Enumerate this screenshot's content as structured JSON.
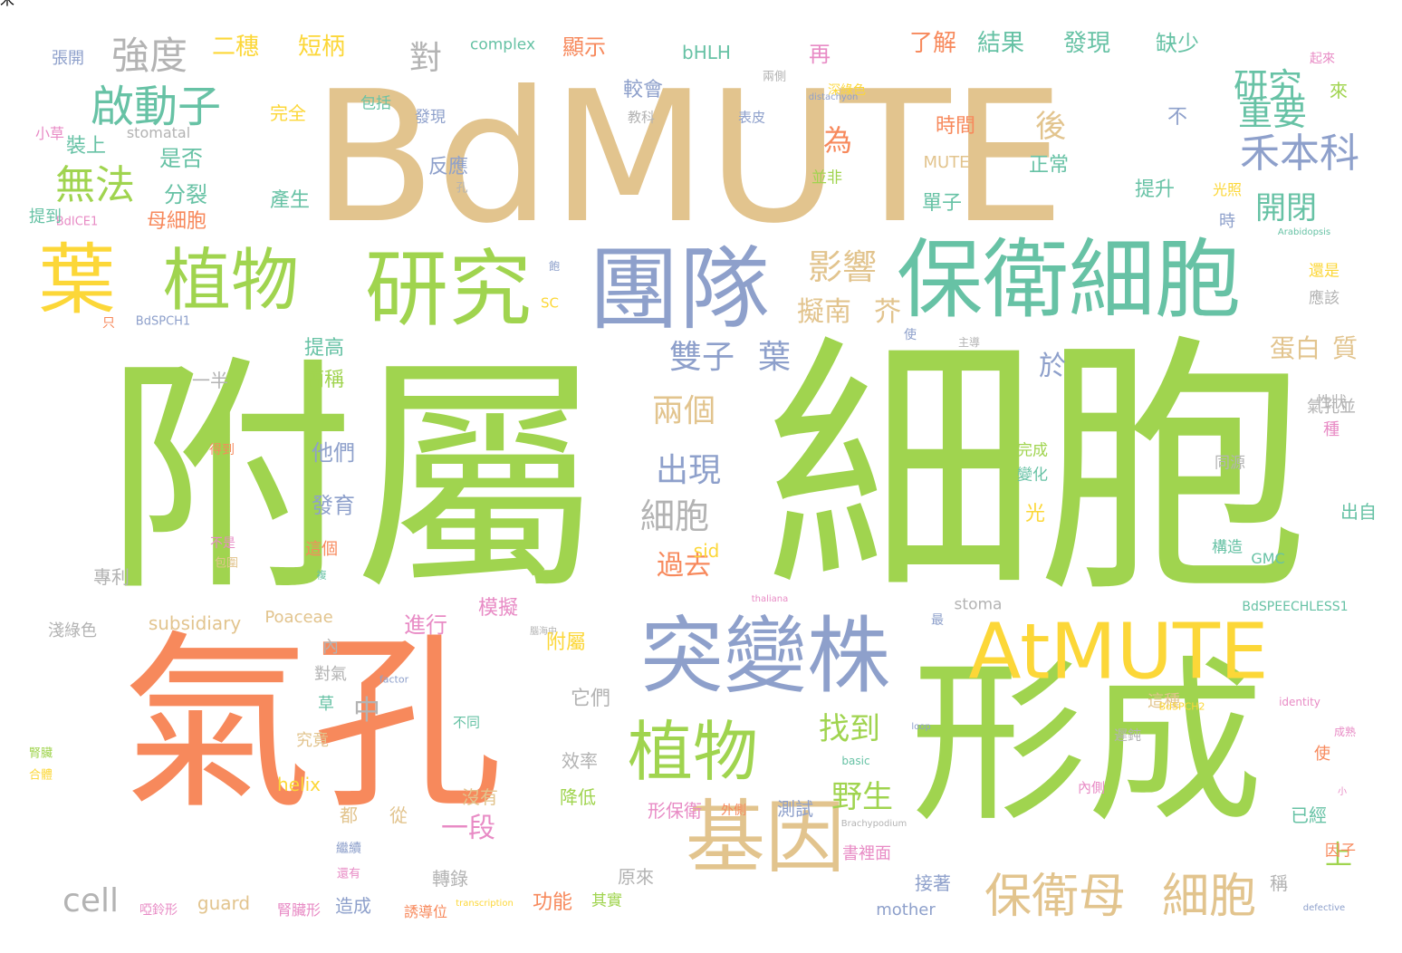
{
  "palette": {
    "green": "#a0d44f",
    "orange": "#f7895c",
    "tan": "#e2c48e",
    "blue": "#8ea0cb",
    "teal": "#67c2a5",
    "yellow": "#fcd738",
    "gray": "#b3b3b3",
    "pink": "#e88bc5"
  },
  "words": [
    {
      "text": "細胞",
      "color": "green"
    },
    {
      "text": "附屬",
      "color": "green"
    },
    {
      "text": "BdMUTE",
      "color": "tan"
    },
    {
      "text": "氣孔",
      "color": "orange"
    },
    {
      "text": "形成",
      "color": "green"
    },
    {
      "text": "保衛細胞",
      "color": "teal"
    },
    {
      "text": "團隊",
      "color": "blue"
    },
    {
      "text": "研究",
      "color": "green"
    },
    {
      "text": "葉",
      "color": "yellow"
    },
    {
      "text": "植物",
      "color": "green"
    },
    {
      "text": "突變株",
      "color": "blue"
    },
    {
      "text": "AtMUTE",
      "color": "yellow"
    },
    {
      "text": "基因",
      "color": "tan"
    },
    {
      "text": "植物",
      "color": "green"
    },
    {
      "text": "保衛母",
      "color": "tan"
    },
    {
      "text": "細胞",
      "color": "tan"
    },
    {
      "text": "啟動子",
      "color": "teal"
    },
    {
      "text": "強度",
      "color": "gray"
    },
    {
      "text": "無法",
      "color": "green"
    },
    {
      "text": "禾本科",
      "color": "blue"
    },
    {
      "text": "研究",
      "color": "teal"
    },
    {
      "text": "重要",
      "color": "teal"
    },
    {
      "text": "影響",
      "color": "tan"
    },
    {
      "text": "雙子",
      "color": "blue"
    },
    {
      "text": "葉",
      "color": "blue"
    },
    {
      "text": "細胞",
      "color": "gray"
    },
    {
      "text": "出現",
      "color": "blue"
    },
    {
      "text": "兩個",
      "color": "tan"
    },
    {
      "text": "找到",
      "color": "green"
    },
    {
      "text": "野生",
      "color": "green"
    },
    {
      "text": "cell",
      "color": "gray"
    },
    {
      "text": "對",
      "color": "gray"
    },
    {
      "text": "開閉",
      "color": "teal"
    },
    {
      "text": "蛋白",
      "color": "tan"
    },
    {
      "text": "質",
      "color": "tan"
    },
    {
      "text": "擬南",
      "color": "tan"
    },
    {
      "text": "芥",
      "color": "tan"
    },
    {
      "text": "過去",
      "color": "orange"
    },
    {
      "text": "上",
      "color": "green"
    },
    {
      "text": "中",
      "color": "gray"
    },
    {
      "text": "後",
      "color": "tan"
    },
    {
      "text": "為",
      "color": "orange"
    },
    {
      "text": "於",
      "color": "blue"
    },
    {
      "text": "一段",
      "color": "pink"
    },
    {
      "text": "二穗",
      "color": "yellow"
    },
    {
      "text": "短柄",
      "color": "yellow"
    },
    {
      "text": "顯示",
      "color": "orange"
    },
    {
      "text": "結果",
      "color": "teal"
    },
    {
      "text": "發現",
      "color": "teal"
    },
    {
      "text": "缺少",
      "color": "teal"
    },
    {
      "text": "了解",
      "color": "orange"
    },
    {
      "text": "再",
      "color": "pink"
    },
    {
      "text": "是否",
      "color": "teal"
    },
    {
      "text": "分裂",
      "color": "teal"
    },
    {
      "text": "裝上",
      "color": "teal"
    },
    {
      "text": "母細胞",
      "color": "orange"
    },
    {
      "text": "產生",
      "color": "teal"
    },
    {
      "text": "反應",
      "color": "blue"
    },
    {
      "text": "提升",
      "color": "teal"
    },
    {
      "text": "時間",
      "color": "orange"
    },
    {
      "text": "正常",
      "color": "teal"
    },
    {
      "text": "單子",
      "color": "teal"
    },
    {
      "text": "發育",
      "color": "blue"
    },
    {
      "text": "他們",
      "color": "blue"
    },
    {
      "text": "簡稱",
      "color": "green"
    },
    {
      "text": "提高",
      "color": "teal"
    },
    {
      "text": "一半",
      "color": "gray"
    },
    {
      "text": "進行",
      "color": "pink"
    },
    {
      "text": "模擬",
      "color": "pink"
    },
    {
      "text": "附屬",
      "color": "yellow"
    },
    {
      "text": "它們",
      "color": "gray"
    },
    {
      "text": "效率",
      "color": "gray"
    },
    {
      "text": "沒有",
      "color": "tan"
    },
    {
      "text": "降低",
      "color": "green"
    },
    {
      "text": "形保衛",
      "color": "pink"
    },
    {
      "text": "測試",
      "color": "blue"
    },
    {
      "text": "功能",
      "color": "orange"
    },
    {
      "text": "原來",
      "color": "gray"
    },
    {
      "text": "轉錄",
      "color": "gray"
    },
    {
      "text": "接著",
      "color": "blue"
    },
    {
      "text": "造成",
      "color": "blue"
    },
    {
      "text": "從",
      "color": "tan"
    },
    {
      "text": "都",
      "color": "tan"
    },
    {
      "text": "subsidiary",
      "color": "tan"
    },
    {
      "text": "Poaceae",
      "color": "tan"
    },
    {
      "text": "guard",
      "color": "tan"
    },
    {
      "text": "sid",
      "color": "yellow"
    },
    {
      "text": "helix",
      "color": "yellow"
    },
    {
      "text": "bHLH",
      "color": "teal"
    },
    {
      "text": "complex",
      "color": "teal"
    },
    {
      "text": "MUTE",
      "color": "tan"
    },
    {
      "text": "mother",
      "color": "blue"
    },
    {
      "text": "stomatal",
      "color": "gray"
    },
    {
      "text": "stoma",
      "color": "gray"
    },
    {
      "text": "GMC",
      "color": "teal"
    },
    {
      "text": "BdSPEECHLESS1",
      "color": "teal"
    },
    {
      "text": "BdSPCH1",
      "color": "blue"
    },
    {
      "text": "BdICE1",
      "color": "pink"
    },
    {
      "text": "張開",
      "color": "blue"
    },
    {
      "text": "包括",
      "color": "teal"
    },
    {
      "text": "完全",
      "color": "yellow"
    },
    {
      "text": "發現",
      "color": "blue"
    },
    {
      "text": "較會",
      "color": "blue"
    },
    {
      "text": "教科",
      "color": "gray"
    },
    {
      "text": "表皮",
      "color": "blue"
    },
    {
      "text": "深綠色",
      "color": "yellow"
    },
    {
      "text": "來",
      "color": "green"
    },
    {
      "text": "不",
      "color": "blue"
    },
    {
      "text": "光照",
      "color": "yellow"
    },
    {
      "text": "時",
      "color": "blue"
    },
    {
      "text": "還是",
      "color": "yellow"
    },
    {
      "text": "應該",
      "color": "gray"
    },
    {
      "text": "性狀",
      "color": "gray"
    },
    {
      "text": "氣孔並",
      "color": "gray"
    },
    {
      "text": "種",
      "color": "pink"
    },
    {
      "text": "同源",
      "color": "gray"
    },
    {
      "text": "出自",
      "color": "teal"
    },
    {
      "text": "使",
      "color": "orange"
    },
    {
      "text": "已經",
      "color": "teal"
    },
    {
      "text": "稱",
      "color": "gray"
    },
    {
      "text": "因子",
      "color": "orange"
    },
    {
      "text": "這種",
      "color": "tan"
    },
    {
      "text": "遲鈍",
      "color": "gray"
    },
    {
      "text": "內側",
      "color": "pink"
    },
    {
      "text": "構造",
      "color": "teal"
    },
    {
      "text": "光",
      "color": "yellow"
    },
    {
      "text": "變化",
      "color": "teal"
    },
    {
      "text": "完成",
      "color": "green"
    },
    {
      "text": "使",
      "color": "blue"
    },
    {
      "text": "專利",
      "color": "gray"
    },
    {
      "text": "這個",
      "color": "orange"
    },
    {
      "text": "得到",
      "color": "orange"
    },
    {
      "text": "不是",
      "color": "pink"
    },
    {
      "text": "包圍",
      "color": "tan"
    },
    {
      "text": "淺綠色",
      "color": "gray"
    },
    {
      "text": "內",
      "color": "gray"
    },
    {
      "text": "草",
      "color": "teal"
    },
    {
      "text": "究竟",
      "color": "tan"
    },
    {
      "text": "不同",
      "color": "teal"
    },
    {
      "text": "對氣",
      "color": "gray"
    },
    {
      "text": "腎臟",
      "color": "green"
    },
    {
      "text": "合體",
      "color": "yellow"
    },
    {
      "text": "繼續",
      "color": "blue"
    },
    {
      "text": "還有",
      "color": "pink"
    },
    {
      "text": "書裡面",
      "color": "pink"
    },
    {
      "text": "外側",
      "color": "orange"
    },
    {
      "text": "其實",
      "color": "green"
    },
    {
      "text": "誘導位",
      "color": "orange"
    },
    {
      "text": "腎臟形",
      "color": "pink"
    },
    {
      "text": "啞鈴形",
      "color": "pink"
    },
    {
      "text": "提到",
      "color": "teal"
    },
    {
      "text": "只",
      "color": "orange"
    },
    {
      "text": "小草",
      "color": "pink"
    },
    {
      "text": "最",
      "color": "blue"
    },
    {
      "text": "兩側",
      "color": "gray"
    },
    {
      "text": "起來",
      "color": "pink"
    },
    {
      "text": "並非",
      "color": "green"
    },
    {
      "text": "孔",
      "color": "gray"
    },
    {
      "text": "SC",
      "color": "yellow"
    },
    {
      "text": "飽",
      "color": "blue"
    },
    {
      "text": "複",
      "color": "teal"
    },
    {
      "text": "factor",
      "color": "blue"
    },
    {
      "text": "loop",
      "color": "blue"
    },
    {
      "text": "basic",
      "color": "teal"
    },
    {
      "text": "Brachypodium",
      "color": "gray"
    },
    {
      "text": "transcription",
      "color": "yellow"
    },
    {
      "text": "defective",
      "color": "blue"
    },
    {
      "text": "distachyon",
      "color": "blue"
    },
    {
      "text": "Arabidopsis",
      "color": "teal"
    },
    {
      "text": "thaliana",
      "color": "pink"
    },
    {
      "text": "identity",
      "color": "pink"
    },
    {
      "text": "BdSPCH2",
      "color": "yellow"
    },
    {
      "text": "成熟",
      "color": "pink"
    },
    {
      "text": "小",
      "color": "pink"
    },
    {
      "text": "主導",
      "color": "gray"
    },
    {
      "text": "腦海中",
      "color": "gray"
    },
    {
      "text": "玉米",
      "color": "green"
    }
  ]
}
